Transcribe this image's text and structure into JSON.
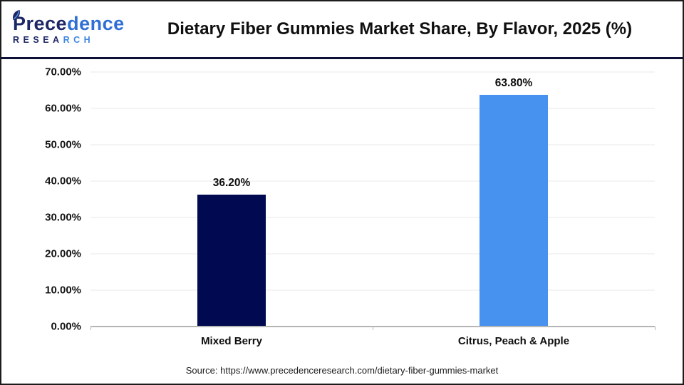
{
  "header": {
    "logo": {
      "word_dark": "Prece",
      "word_light": "dence",
      "sub_dark": "RESEA",
      "sub_light": "RCH"
    },
    "title": "Dietary Fiber Gummies Market Share, By Flavor, 2025 (%)"
  },
  "chart_data": {
    "type": "bar",
    "title": "Dietary Fiber Gummies Market Share, By Flavor, 2025 (%)",
    "categories": [
      "Mixed Berry",
      "Citrus, Peach & Apple"
    ],
    "values": [
      36.2,
      63.8
    ],
    "value_labels": [
      "36.20%",
      "63.80%"
    ],
    "bar_colors": [
      "#010a50",
      "#4792ee"
    ],
    "xlabel": "",
    "ylabel": "",
    "ylim": [
      0,
      70
    ],
    "ytick_step": 10,
    "ytick_labels": [
      "0.00%",
      "10.00%",
      "20.00%",
      "30.00%",
      "40.00%",
      "50.00%",
      "60.00%",
      "70.00%"
    ],
    "grid": true,
    "legend": false
  },
  "footer": {
    "source": "Source: https://www.precedenceresearch.com/dietary-fiber-gummies-market"
  },
  "colors": {
    "divider_navy": "#0e1038",
    "logo_navy": "#1e2766",
    "logo_blue": "#2f6fd6",
    "grid_color": "#e8e8e8",
    "axis_color": "#b5b5b5"
  }
}
